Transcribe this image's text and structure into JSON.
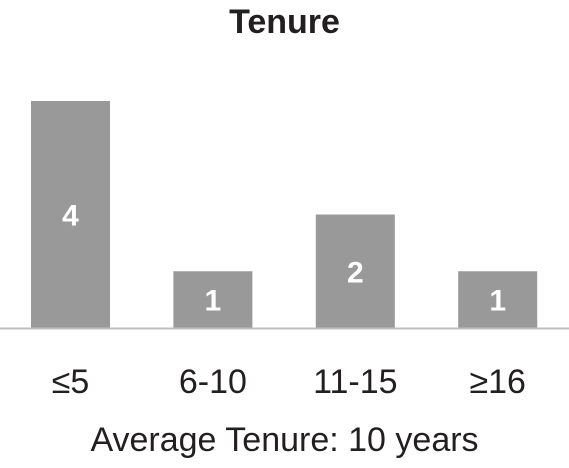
{
  "chart_data": {
    "type": "bar",
    "title": "Tenure",
    "categories": [
      "≤5",
      "6-10",
      "11-15",
      "≥16"
    ],
    "values": [
      4,
      1,
      2,
      1
    ],
    "data_labels": [
      "4",
      "1",
      "2",
      "1"
    ],
    "footnote": "Average Tenure: 10 years",
    "xlabel": "",
    "ylabel": "",
    "ylim": [
      0,
      4
    ],
    "grid": false,
    "colors": {
      "bar": "#999999",
      "bar_label": "#ffffff",
      "axis": "#bfbfbf",
      "text": "#231f20"
    }
  }
}
